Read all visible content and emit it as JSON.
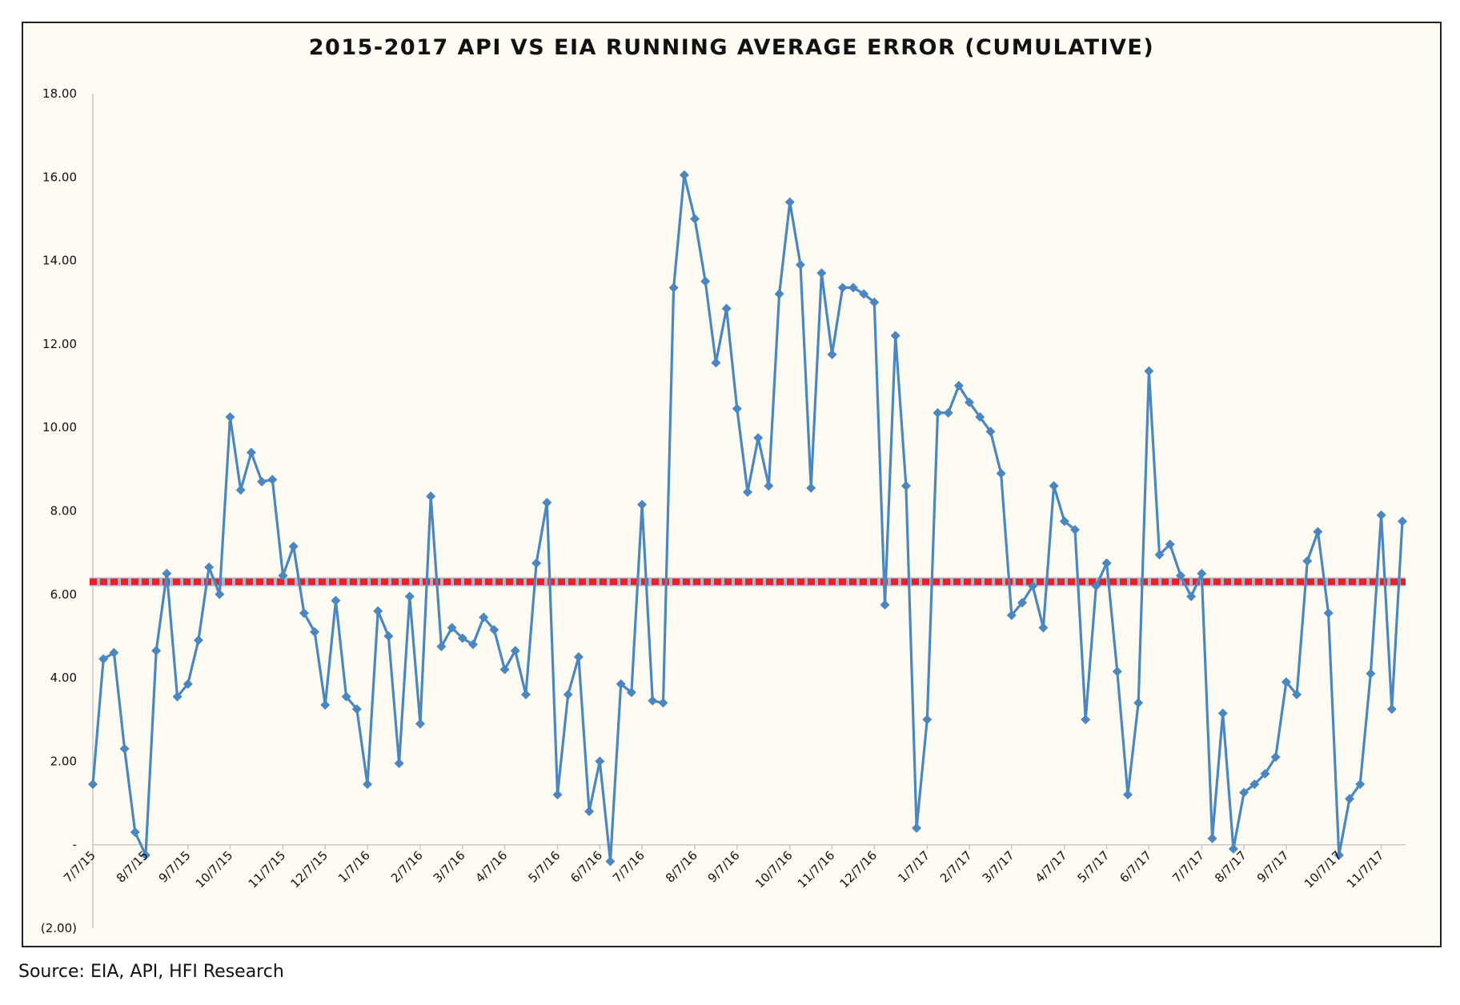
{
  "chart_data": {
    "type": "line",
    "title": "2015-2017 API VS EIA RUNNING AVERAGE ERROR (CUMULATIVE)",
    "xlabel": "",
    "ylabel": "",
    "ylim": [
      -2,
      18
    ],
    "y_ticks": [
      {
        "value": 18,
        "label": "18.00"
      },
      {
        "value": 16,
        "label": "16.00"
      },
      {
        "value": 14,
        "label": "14.00"
      },
      {
        "value": 12,
        "label": "12.00"
      },
      {
        "value": 10,
        "label": "10.00"
      },
      {
        "value": 8,
        "label": "8.00"
      },
      {
        "value": 6,
        "label": "6.00"
      },
      {
        "value": 4,
        "label": "4.00"
      },
      {
        "value": 2,
        "label": "2.00"
      },
      {
        "value": 0,
        "label": "-"
      },
      {
        "value": -2,
        "label": "(2.00)"
      }
    ],
    "x_ticks": [
      {
        "index": 0,
        "label": "7/7/15"
      },
      {
        "index": 5,
        "label": "8/7/15"
      },
      {
        "index": 9,
        "label": "9/7/15"
      },
      {
        "index": 13,
        "label": "10/7/15"
      },
      {
        "index": 18,
        "label": "11/7/15"
      },
      {
        "index": 22,
        "label": "12/7/15"
      },
      {
        "index": 26,
        "label": "1/7/16"
      },
      {
        "index": 31,
        "label": "2/7/16"
      },
      {
        "index": 35,
        "label": "3/7/16"
      },
      {
        "index": 39,
        "label": "4/7/16"
      },
      {
        "index": 44,
        "label": "5/7/16"
      },
      {
        "index": 48,
        "label": "6/7/16"
      },
      {
        "index": 52,
        "label": "7/7/16"
      },
      {
        "index": 57,
        "label": "8/7/16"
      },
      {
        "index": 61,
        "label": "9/7/16"
      },
      {
        "index": 66,
        "label": "10/7/16"
      },
      {
        "index": 70,
        "label": "11/7/16"
      },
      {
        "index": 74,
        "label": "12/7/16"
      },
      {
        "index": 79,
        "label": "1/7/17"
      },
      {
        "index": 83,
        "label": "2/7/17"
      },
      {
        "index": 87,
        "label": "3/7/17"
      },
      {
        "index": 92,
        "label": "4/7/17"
      },
      {
        "index": 96,
        "label": "5/7/17"
      },
      {
        "index": 100,
        "label": "6/7/17"
      },
      {
        "index": 105,
        "label": "7/7/17"
      },
      {
        "index": 109,
        "label": "8/7/17"
      },
      {
        "index": 113,
        "label": "9/7/17"
      },
      {
        "index": 118,
        "label": "10/7/17"
      },
      {
        "index": 122,
        "label": "11/7/17"
      }
    ],
    "series": [
      {
        "color": "#4a86bf",
        "marker": "diamond",
        "values": [
          1.45,
          4.45,
          4.6,
          2.3,
          0.3,
          -0.25,
          4.65,
          6.5,
          3.55,
          3.85,
          4.9,
          6.65,
          6.0,
          10.25,
          8.5,
          9.4,
          8.7,
          8.75,
          6.45,
          7.15,
          5.55,
          5.1,
          3.35,
          5.85,
          3.55,
          3.25,
          1.45,
          5.6,
          5.0,
          1.95,
          5.95,
          2.9,
          8.35,
          4.75,
          5.2,
          4.95,
          4.8,
          5.45,
          5.15,
          4.2,
          4.65,
          3.6,
          6.75,
          8.2,
          1.2,
          3.6,
          4.5,
          0.8,
          2.0,
          -0.4,
          3.85,
          3.65,
          8.15,
          3.45,
          3.4,
          13.35,
          16.05,
          15.0,
          13.5,
          11.55,
          12.85,
          10.45,
          8.45,
          9.75,
          8.6,
          13.2,
          15.4,
          13.9,
          8.55,
          13.7,
          11.75,
          13.35,
          13.35,
          13.2,
          13.0,
          5.75,
          12.2,
          8.6,
          0.4,
          3.0,
          10.35,
          10.35,
          11.0,
          10.6,
          10.25,
          9.9,
          8.9,
          5.5,
          5.8,
          6.2,
          5.2,
          8.6,
          7.75,
          7.55,
          3.0,
          6.2,
          6.75,
          4.15,
          1.2,
          3.4,
          11.35,
          6.95,
          7.2,
          6.45,
          5.95,
          6.5,
          0.15,
          3.15,
          -0.1,
          1.25,
          1.45,
          1.7,
          2.1,
          3.9,
          3.6,
          6.8,
          7.5,
          5.55,
          -0.25,
          1.1,
          1.45,
          4.1,
          7.9,
          3.25,
          7.75
        ]
      },
      {
        "color": "#e8202a",
        "style": "dashed-average",
        "value": 6.3
      }
    ],
    "grid": false,
    "legend": "none"
  },
  "source": "Source: EIA, API, HFI Research"
}
